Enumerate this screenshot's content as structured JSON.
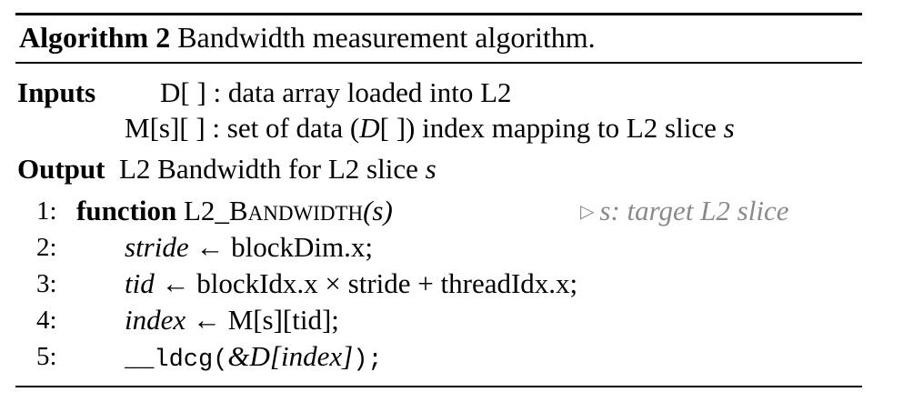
{
  "caption": {
    "label": "Algorithm 2",
    "title": "Bandwidth measurement algorithm."
  },
  "inputs": {
    "label": "Inputs",
    "items": [
      {
        "name": "D[ ]",
        "desc": ": data array loaded into L2"
      },
      {
        "name": "M[s][ ]",
        "desc": ": set of data (",
        "d_sym": "D",
        "d_brk": "[ ]",
        "desc_end": ") index mapping to L2 slice ",
        "slice_var": "s"
      }
    ]
  },
  "output": {
    "label": "Output",
    "text": "L2 Bandwidth for L2 slice ",
    "var": "s"
  },
  "lines": [
    {
      "num": "1:",
      "keyword": "function",
      "fname_first": "L2_B",
      "fname_rest": "ANDWIDTH",
      "args": "(s)",
      "comment": "s: target L2 slice"
    },
    {
      "num": "2:",
      "lhs": "stride",
      "arrow": "←",
      "rhs": "blockDim.x;"
    },
    {
      "num": "3:",
      "lhs": "tid",
      "arrow": "←",
      "rhs": "blockIdx.x × stride + threadIdx.x;"
    },
    {
      "num": "4:",
      "lhs": "index",
      "arrow": "←",
      "rhs": "M[s][tid];"
    },
    {
      "num": "5:",
      "call_name": "__ldcg(",
      "call_arg": "&D[index]",
      "call_end": ");"
    }
  ]
}
